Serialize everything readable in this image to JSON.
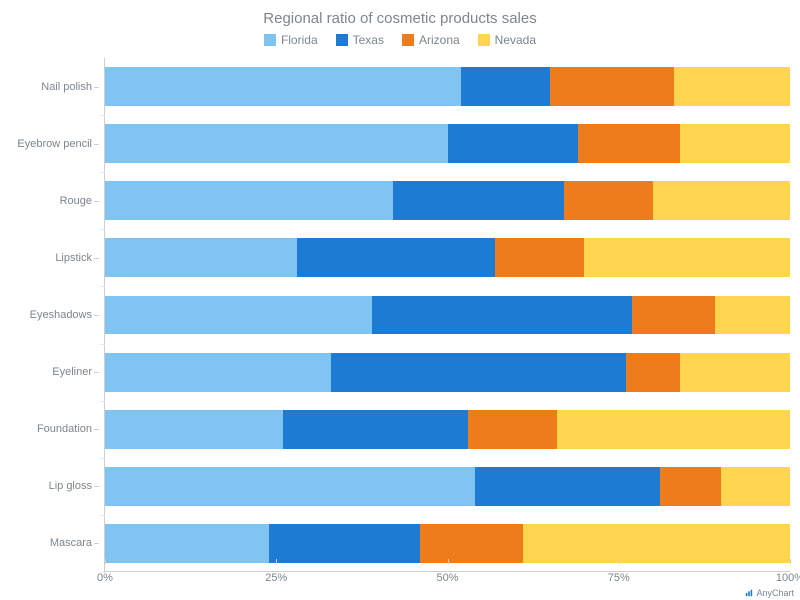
{
  "chart": {
    "type": "stacked-bar-100",
    "title": "Regional ratio of cosmetic products sales",
    "title_fontsize": 15,
    "title_color": "#7c868e",
    "background_color": "#ffffff",
    "label_fontsize": 11,
    "label_color": "#7c868e",
    "series": [
      {
        "name": "Florida",
        "color": "#80c4f2"
      },
      {
        "name": "Texas",
        "color": "#1e7bd4"
      },
      {
        "name": "Arizona",
        "color": "#ef7c1a"
      },
      {
        "name": "Nevada",
        "color": "#ffd54f"
      }
    ],
    "categories": [
      "Nail polish",
      "Eyebrow pencil",
      "Rouge",
      "Lipstick",
      "Eyeshadows",
      "Eyeliner",
      "Foundation",
      "Lip gloss",
      "Mascara"
    ],
    "values": [
      [
        52,
        13,
        18,
        17
      ],
      [
        50,
        19,
        15,
        16
      ],
      [
        42,
        25,
        13,
        20
      ],
      [
        28,
        29,
        13,
        30
      ],
      [
        39,
        38,
        12,
        11
      ],
      [
        33,
        43,
        8,
        16
      ],
      [
        26,
        27,
        13,
        34
      ],
      [
        54,
        27,
        9,
        10
      ],
      [
        24,
        22,
        15,
        39
      ]
    ],
    "x_ticks": [
      {
        "pos": 0,
        "label": "0%"
      },
      {
        "pos": 25,
        "label": "25%"
      },
      {
        "pos": 50,
        "label": "50%"
      },
      {
        "pos": 75,
        "label": "75%"
      },
      {
        "pos": 100,
        "label": "100%"
      }
    ],
    "bar_height_pct": 68,
    "axis_color": "#cecece"
  },
  "credit": {
    "text": "AnyChart"
  }
}
